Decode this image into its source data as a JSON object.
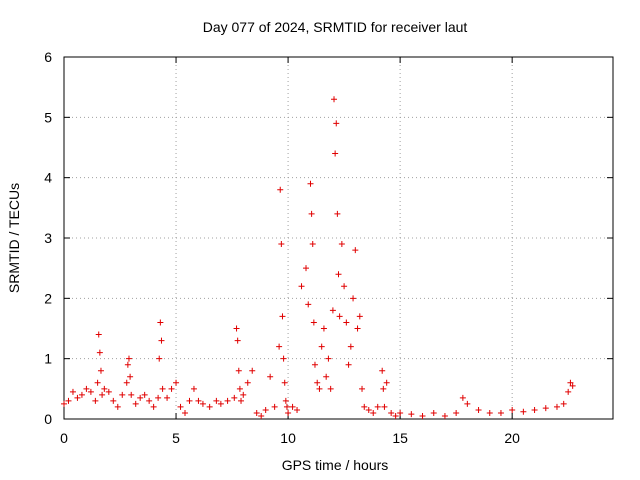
{
  "chart_data": {
    "type": "scatter",
    "title": "Day 077 of 2024, SRMTID for receiver laut",
    "xlabel": "GPS time / hours",
    "ylabel": "SRMTID / TECUs",
    "xlim": [
      0,
      24.5
    ],
    "ylim": [
      0,
      6
    ],
    "xticks": [
      0,
      5,
      10,
      15,
      20
    ],
    "yticks": [
      0,
      1,
      2,
      3,
      4,
      5,
      6
    ],
    "grid": true,
    "marker": "+",
    "color": "#e00000",
    "series": [
      {
        "name": "SRMTID",
        "x": [
          0.0,
          0.2,
          0.4,
          0.6,
          0.8,
          1.0,
          1.2,
          1.4,
          1.5,
          1.55,
          1.6,
          1.65,
          1.7,
          1.8,
          2.0,
          2.2,
          2.4,
          2.6,
          2.8,
          2.85,
          2.9,
          2.95,
          3.0,
          3.2,
          3.4,
          3.6,
          3.8,
          4.0,
          4.2,
          4.25,
          4.3,
          4.35,
          4.4,
          4.6,
          4.8,
          5.0,
          5.2,
          5.4,
          5.6,
          5.8,
          6.0,
          6.2,
          6.5,
          6.8,
          7.0,
          7.3,
          7.6,
          7.7,
          7.75,
          7.8,
          7.85,
          7.9,
          8.0,
          8.2,
          8.4,
          8.6,
          8.8,
          9.0,
          9.2,
          9.4,
          9.6,
          9.65,
          9.7,
          9.75,
          9.8,
          9.85,
          9.9,
          9.95,
          10.0,
          10.2,
          10.4,
          10.6,
          10.8,
          10.9,
          11.0,
          11.05,
          11.1,
          11.15,
          11.2,
          11.3,
          11.4,
          11.5,
          11.6,
          11.7,
          11.8,
          11.9,
          12.0,
          12.05,
          12.1,
          12.15,
          12.2,
          12.25,
          12.3,
          12.4,
          12.5,
          12.6,
          12.7,
          12.8,
          12.9,
          13.0,
          13.1,
          13.2,
          13.3,
          13.4,
          13.6,
          13.8,
          14.0,
          14.2,
          14.25,
          14.3,
          14.4,
          14.6,
          14.8,
          15.0,
          15.5,
          16.0,
          16.5,
          17.0,
          17.5,
          17.8,
          18.0,
          18.5,
          19.0,
          19.5,
          20.0,
          20.5,
          21.0,
          21.5,
          22.0,
          22.3,
          22.5,
          22.6,
          22.7
        ],
        "values": [
          0.25,
          0.3,
          0.45,
          0.35,
          0.4,
          0.5,
          0.45,
          0.3,
          0.6,
          1.4,
          1.1,
          0.8,
          0.4,
          0.5,
          0.45,
          0.3,
          0.2,
          0.4,
          0.6,
          0.9,
          1.0,
          0.7,
          0.4,
          0.25,
          0.35,
          0.4,
          0.3,
          0.2,
          0.35,
          1.0,
          1.6,
          1.3,
          0.5,
          0.35,
          0.5,
          0.6,
          0.2,
          0.1,
          0.3,
          0.5,
          0.3,
          0.25,
          0.2,
          0.3,
          0.25,
          0.3,
          0.35,
          1.5,
          1.3,
          0.8,
          0.5,
          0.3,
          0.4,
          0.6,
          0.8,
          0.1,
          0.05,
          0.15,
          0.7,
          0.2,
          1.2,
          3.8,
          2.9,
          1.7,
          1.0,
          0.6,
          0.3,
          0.2,
          0.1,
          0.2,
          0.15,
          2.2,
          2.5,
          1.9,
          3.9,
          3.4,
          2.9,
          1.6,
          0.9,
          0.6,
          0.5,
          1.2,
          1.5,
          0.7,
          1.0,
          0.5,
          1.8,
          5.3,
          4.4,
          4.9,
          3.4,
          2.4,
          1.7,
          2.9,
          2.2,
          1.6,
          0.9,
          1.2,
          2.0,
          2.8,
          1.5,
          1.7,
          0.5,
          0.2,
          0.15,
          0.1,
          0.2,
          0.8,
          0.5,
          0.2,
          0.6,
          0.1,
          0.05,
          0.1,
          0.08,
          0.05,
          0.1,
          0.05,
          0.1,
          0.35,
          0.25,
          0.15,
          0.1,
          0.1,
          0.15,
          0.12,
          0.15,
          0.18,
          0.2,
          0.25,
          0.45,
          0.6,
          0.55
        ]
      }
    ]
  }
}
